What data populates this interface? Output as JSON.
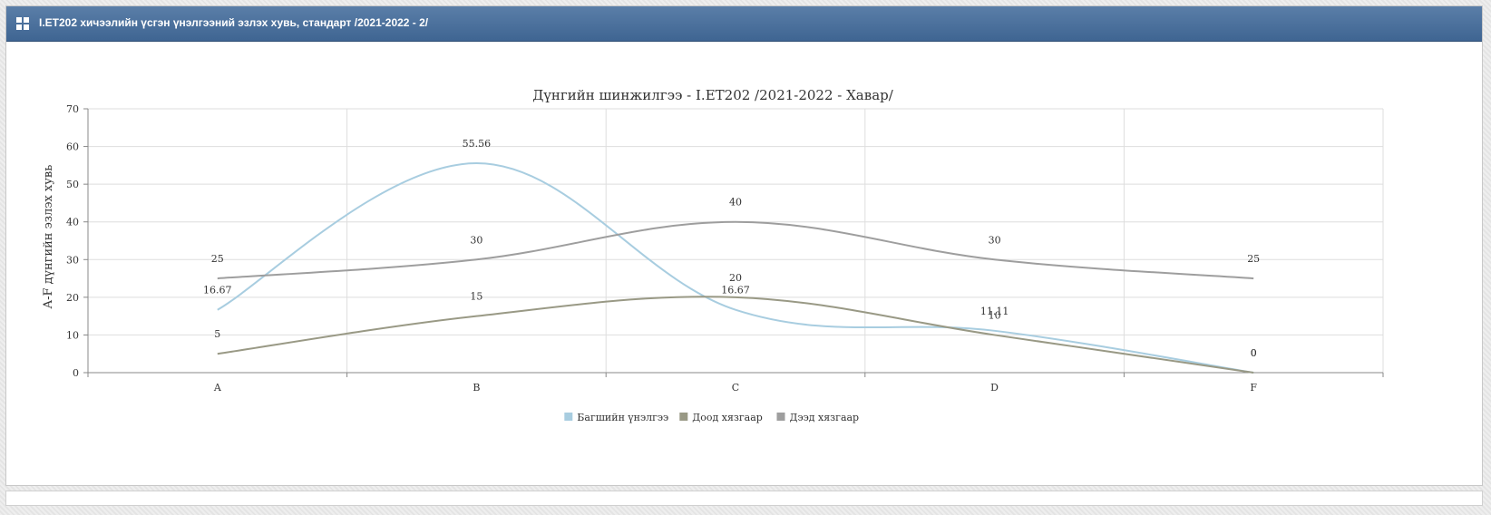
{
  "panel": {
    "title": "I.ET202 хичээлийн үсгэн үнэлгээний эзлэх хувь, стандарт /2021-2022 - 2/"
  },
  "icons": {
    "header": "grid-icon"
  },
  "chart_data": {
    "type": "line",
    "title": "Дүнгийн шинжилгээ - I.ET202 /2021-2022 - Хавар/",
    "xlabel": "",
    "ylabel": "A-F дүнгийн эзлэх хувь",
    "categories": [
      "A",
      "B",
      "C",
      "D",
      "F"
    ],
    "ylim": [
      0,
      70
    ],
    "yticks": [
      0,
      10,
      20,
      30,
      40,
      50,
      60,
      70
    ],
    "grid": true,
    "legend_position": "bottom-center",
    "series": [
      {
        "name": "Багшийн үнэлгээ",
        "color": "#a8cde0",
        "values": [
          16.67,
          55.56,
          16.67,
          11.11,
          0
        ]
      },
      {
        "name": "Доод хязгаар",
        "color": "#999985",
        "values": [
          5,
          15,
          20,
          10,
          0
        ]
      },
      {
        "name": "Дээд хязгаар",
        "color": "#9e9e9e",
        "values": [
          25,
          30,
          40,
          30,
          25
        ]
      }
    ]
  }
}
